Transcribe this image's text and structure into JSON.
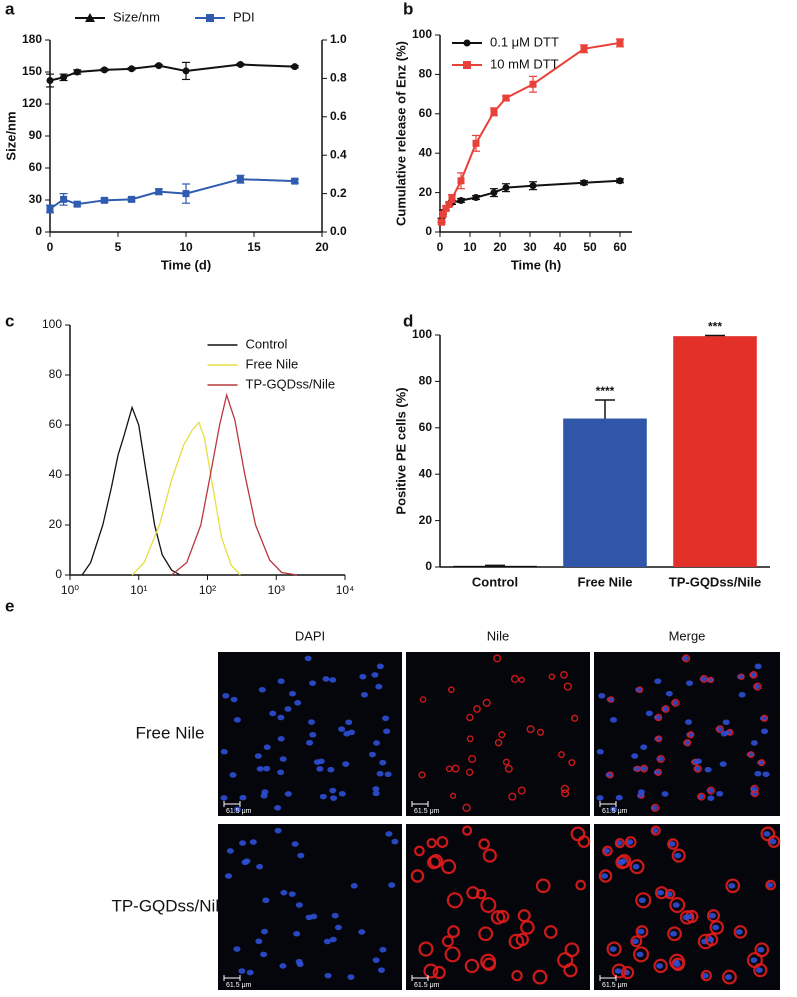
{
  "chart_data": [
    {
      "type": "line",
      "label": "a",
      "x": [
        0,
        1,
        2,
        4,
        6,
        8,
        10,
        14,
        18
      ],
      "xlim": [
        0,
        20
      ],
      "xticks": [
        0,
        5,
        10,
        15,
        20
      ],
      "xlabel": "Time (d)",
      "ylim": [
        0,
        180
      ],
      "yticks": [
        0,
        30,
        60,
        90,
        120,
        150,
        180
      ],
      "ylabel": "Size/nm",
      "y2lim": [
        0,
        1
      ],
      "y2ticks": [
        {
          "value": 0,
          "label": "0.0"
        },
        0.2,
        0.4,
        0.6,
        0.8,
        {
          "value": 1,
          "label": "1.0"
        }
      ],
      "legend": "top",
      "markers": true,
      "series": [
        {
          "name": "Size/nm",
          "color": "#111111",
          "values": [
            142,
            145,
            150,
            152,
            153,
            156,
            151,
            157,
            155
          ],
          "errors": [
            6,
            3,
            2,
            1,
            1,
            1,
            8,
            1,
            1
          ]
        },
        {
          "name": "PDI",
          "color": "#2f5cb0",
          "axis": "y2",
          "values": [
            0.12,
            0.17,
            0.145,
            0.165,
            0.17,
            0.21,
            0.2,
            0.275,
            0.265
          ],
          "errors": [
            0.02,
            0.03,
            0.01,
            0.01,
            0.01,
            0.015,
            0.05,
            0.02,
            0.01
          ]
        }
      ]
    },
    {
      "type": "line",
      "label": "b",
      "x": [
        0.5,
        1,
        2,
        3,
        4,
        7,
        12,
        18,
        22,
        31,
        48,
        60
      ],
      "xlim": [
        0,
        64
      ],
      "xticks": [
        0,
        10,
        20,
        30,
        40,
        50,
        60
      ],
      "xlabel": "Time (h)",
      "ylim": [
        0,
        100
      ],
      "yticks": [
        0,
        20,
        40,
        60,
        80,
        100
      ],
      "ylabel": "Cumulative release of Enz (%)",
      "legend": "top-left",
      "markers": true,
      "series": [
        {
          "name": "0.1 μM DTT",
          "color": "#111111",
          "values": [
            6,
            10,
            12,
            14,
            15,
            16,
            17.5,
            20,
            22.5,
            23.5,
            25,
            26
          ],
          "errors": [
            1,
            1,
            1,
            1,
            1,
            1,
            1,
            2,
            2,
            2,
            1,
            1
          ]
        },
        {
          "name": "10 mM DTT",
          "color": "#e8413a",
          "values": [
            5,
            9,
            12,
            14,
            17,
            26,
            45,
            61,
            68,
            75,
            93,
            96
          ],
          "errors": [
            1,
            1,
            1,
            1,
            2,
            4,
            4,
            2,
            1,
            4,
            2,
            2
          ]
        }
      ]
    },
    {
      "type": "line",
      "label": "c",
      "xscale": "log",
      "xlim": [
        1,
        10000
      ],
      "xticks": [
        {
          "value": 1,
          "label": "10⁰"
        },
        {
          "value": 10,
          "label": "10¹"
        },
        {
          "value": 100,
          "label": "10²"
        },
        {
          "value": 1000,
          "label": "10³"
        },
        {
          "value": 10000,
          "label": "10⁴"
        }
      ],
      "ylim": [
        0,
        100
      ],
      "yticks": [
        0,
        20,
        40,
        60,
        80,
        100
      ],
      "legend": "top-right",
      "markers": false,
      "series": [
        {
          "name": "Control",
          "color": "#111111",
          "x": [
            1.5,
            2,
            3,
            4,
            5,
            6,
            8,
            10,
            13,
            17,
            22,
            30,
            40
          ],
          "values": [
            0,
            5,
            20,
            35,
            48,
            55,
            67,
            60,
            40,
            20,
            8,
            2,
            0
          ]
        },
        {
          "name": "Free Nile",
          "color": "#e6df45",
          "x": [
            8,
            12,
            20,
            30,
            45,
            60,
            75,
            90,
            120,
            160,
            220,
            300
          ],
          "values": [
            0,
            5,
            20,
            38,
            52,
            58,
            61,
            55,
            35,
            15,
            4,
            0
          ]
        },
        {
          "name": "TP-GQDss/Nile",
          "color": "#b8383c",
          "x": [
            30,
            50,
            80,
            110,
            150,
            190,
            250,
            350,
            500,
            800,
            1200,
            2000
          ],
          "values": [
            0,
            5,
            20,
            40,
            60,
            72,
            62,
            40,
            20,
            6,
            1,
            0
          ]
        }
      ]
    },
    {
      "type": "bar",
      "label": "d",
      "categories": [
        "Control",
        "Free Nile",
        "TP-GQDss/Nile"
      ],
      "values": [
        0.5,
        64,
        99.5
      ],
      "errors": [
        0.2,
        8,
        0.3
      ],
      "significance": [
        null,
        "****",
        "***"
      ],
      "colors": [
        "#111111",
        "#2f56a8",
        "#e3312a"
      ],
      "ylim": [
        0,
        100
      ],
      "yticks": [
        0,
        20,
        40,
        60,
        80,
        100
      ],
      "ylabel": "Positive PE cells (%)"
    }
  ],
  "figure_e": {
    "label": "e",
    "columns": [
      "DAPI",
      "Nile",
      "Merge"
    ],
    "rows": [
      "Free Nile",
      "TP-GQDss/Nile"
    ],
    "scale_bar": "61.5 μm"
  }
}
